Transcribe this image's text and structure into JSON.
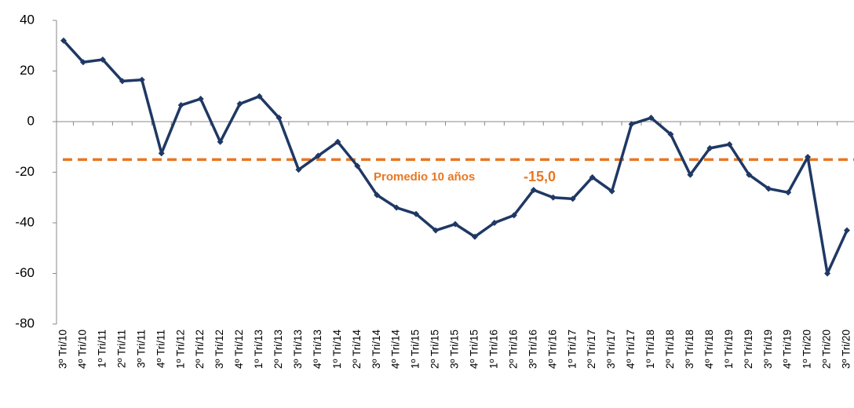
{
  "chart_data": {
    "type": "line",
    "categories": [
      "3º Tri/10",
      "4º Tri/10",
      "1º Tri/11",
      "2º Tri/11",
      "3º Tri/11",
      "4º Tri/11",
      "1º Tri/12",
      "2º Tri/12",
      "3º Tri/12",
      "4º Tri/12",
      "1º Tri/13",
      "2º Tri/13",
      "3º Tri/13",
      "4º Tri/13",
      "1º Tri/14",
      "2º Tri/14",
      "3º Tri/14",
      "4º Tri/14",
      "1º Tri/15",
      "2º Tri/15",
      "3º Tri/15",
      "4º Tri/15",
      "1º Tri/16",
      "2º Tri/16",
      "3º Tri/16",
      "4º Tri/16",
      "1º Tri/17",
      "2º Tri/17",
      "3º Tri/17",
      "4º Tri/17",
      "1º Tri/18",
      "2º Tri/18",
      "3º Tri/18",
      "4º Tri/18",
      "1º Tri/19",
      "2º Tri/19",
      "3º Tri/19",
      "4º Tri/19",
      "1º Tri/20",
      "2º Tri/20",
      "3º Tri/20"
    ],
    "values": [
      32,
      23.5,
      24.5,
      16,
      16.5,
      -12.5,
      6.5,
      9,
      -8,
      7,
      10,
      1.5,
      -19,
      -13.5,
      -8,
      -17.5,
      -29,
      -34,
      -36.5,
      -43,
      -40.5,
      -45.5,
      -40,
      -37,
      -27,
      -30,
      -30.5,
      -22,
      -27.5,
      -1,
      1.5,
      -5,
      -21,
      -10.5,
      -9,
      -21,
      -26.5,
      -28,
      -14,
      -60,
      -43
    ],
    "color": "#1f3864",
    "ylim": [
      -80,
      40
    ],
    "yticks": [
      -80,
      -60,
      -40,
      -20,
      0,
      20,
      40
    ],
    "average": {
      "value": -15,
      "label": "Promedio 10 años",
      "value_label": "-15,0",
      "color": "#e87722"
    }
  }
}
